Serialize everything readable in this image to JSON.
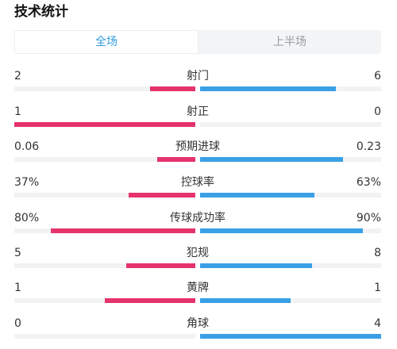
{
  "header": {
    "title": "技术统计"
  },
  "tabs": [
    {
      "label": "全场",
      "active": true
    },
    {
      "label": "上半场",
      "active": false
    }
  ],
  "colors": {
    "home": "#e5336c",
    "away": "#3aa0e6",
    "accent": "#2f9bdc",
    "track": "#f1f2f4"
  },
  "stats": [
    {
      "label": "射门",
      "home": "2",
      "away": "6",
      "home_ratio": 0.25,
      "away_ratio": 0.75
    },
    {
      "label": "射正",
      "home": "1",
      "away": "0",
      "home_ratio": 1.0,
      "away_ratio": 0.0
    },
    {
      "label": "预期进球",
      "home": "0.06",
      "away": "0.23",
      "home_ratio": 0.21,
      "away_ratio": 0.79
    },
    {
      "label": "控球率",
      "home": "37%",
      "away": "63%",
      "home_ratio": 0.37,
      "away_ratio": 0.63
    },
    {
      "label": "传球成功率",
      "home": "80%",
      "away": "90%",
      "home_ratio": 0.8,
      "away_ratio": 0.9
    },
    {
      "label": "犯规",
      "home": "5",
      "away": "8",
      "home_ratio": 0.38,
      "away_ratio": 0.62
    },
    {
      "label": "黄牌",
      "home": "1",
      "away": "1",
      "home_ratio": 0.5,
      "away_ratio": 0.5
    },
    {
      "label": "角球",
      "home": "0",
      "away": "4",
      "home_ratio": 0.0,
      "away_ratio": 1.0
    }
  ]
}
